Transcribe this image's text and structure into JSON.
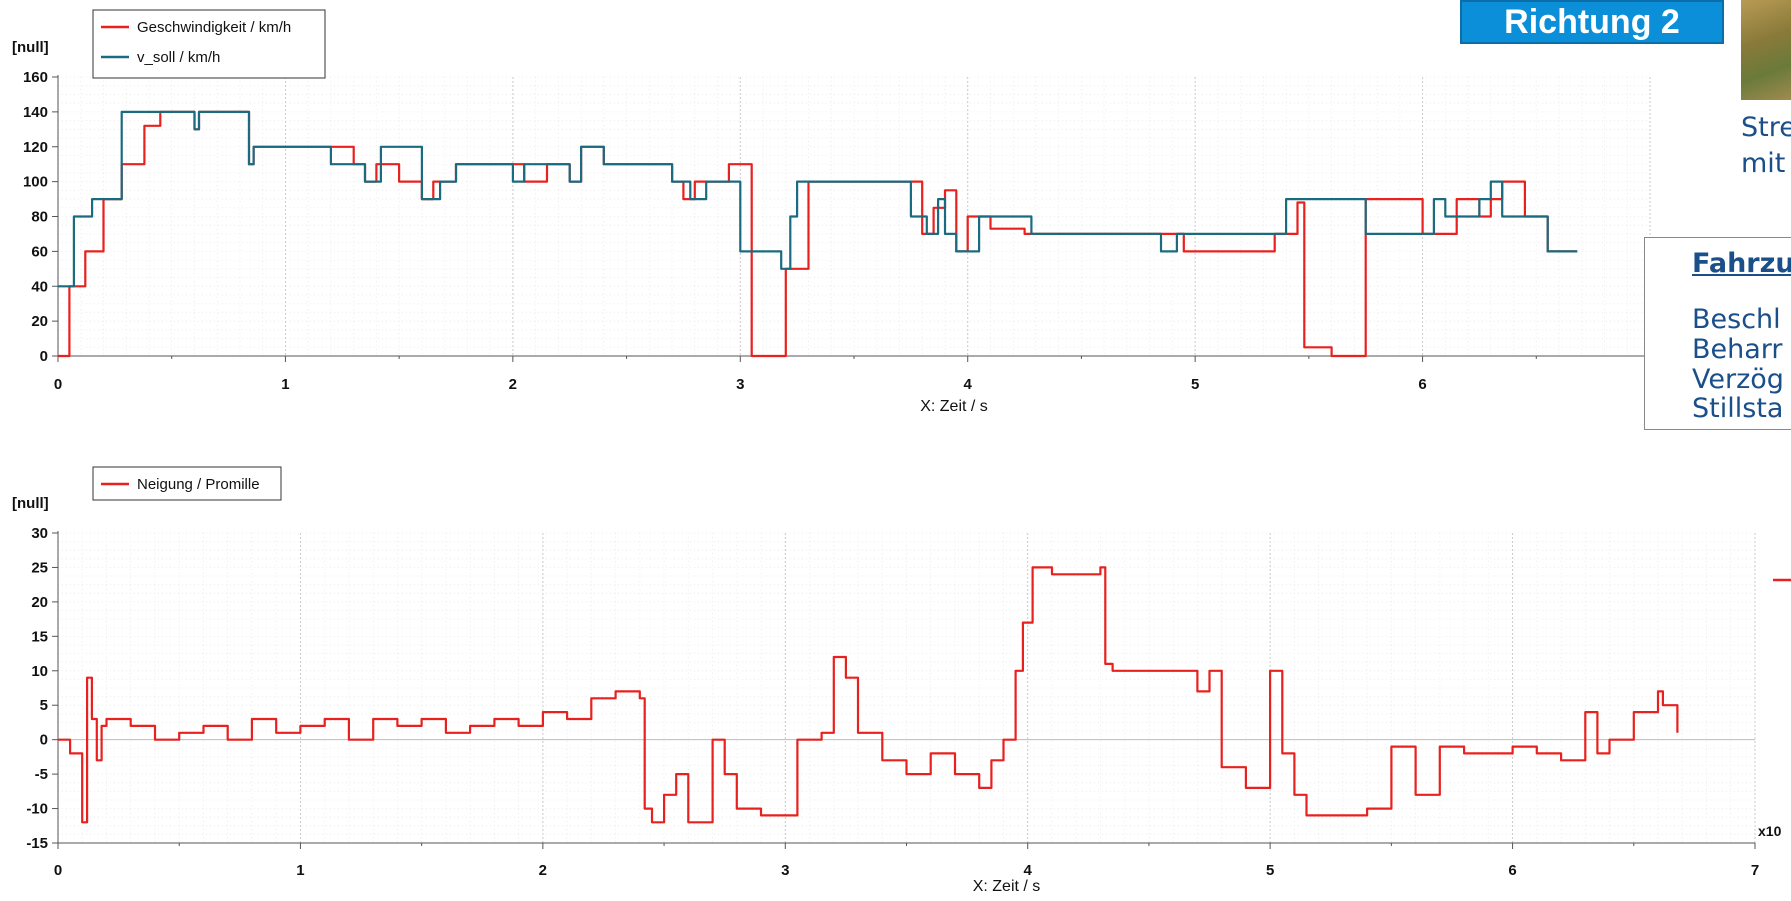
{
  "top_button": {
    "label": "Richtung 2"
  },
  "side_caption": {
    "line1": "Stre",
    "line2": "mit"
  },
  "info_box": {
    "title": "Fahrzu",
    "lines": [
      "Beschl",
      "Beharr",
      "Verzög",
      "Stillsta"
    ]
  },
  "colors": {
    "red": "#e8201e",
    "teal": "#1a6b80",
    "accent_blue": "#0a8fd8",
    "text_blue": "#1a4f8a"
  },
  "x_multiplier_label": "x10",
  "chart_data": [
    {
      "type": "line",
      "unit_label": "[null]",
      "xlabel": "X: Zeit / s",
      "xlim": [
        0,
        7
      ],
      "ylim": [
        0,
        160
      ],
      "xticks": [
        "0",
        "1",
        "2",
        "3",
        "4",
        "5",
        "6"
      ],
      "yticks": [
        "0",
        "20",
        "40",
        "60",
        "80",
        "100",
        "120",
        "140",
        "160"
      ],
      "grid": true,
      "legend": "top-left",
      "series": [
        {
          "name": "Geschwindigkeit / km/h",
          "color": "#e8201e",
          "x": [
            0,
            0.05,
            0.12,
            0.2,
            0.28,
            0.38,
            0.45,
            0.58,
            0.6,
            0.62,
            0.8,
            0.84,
            0.86,
            1.2,
            1.3,
            1.35,
            1.4,
            1.5,
            1.6,
            1.65,
            1.75,
            2.0,
            2.05,
            2.15,
            2.25,
            2.3,
            2.4,
            2.7,
            2.75,
            2.8,
            2.95,
            3.0,
            3.05,
            3.1,
            3.15,
            3.2,
            3.3,
            3.5,
            3.75,
            3.8,
            3.85,
            3.9,
            3.95,
            4.0,
            4.1,
            4.25,
            4.5,
            4.85,
            4.95,
            5.35,
            5.4,
            5.45,
            5.48,
            5.6,
            5.75,
            6.0,
            6.05,
            6.15,
            6.25,
            6.3,
            6.35,
            6.45,
            6.55,
            6.58,
            6.68
          ],
          "y": [
            0,
            40,
            60,
            90,
            110,
            132,
            140,
            140,
            130,
            140,
            140,
            110,
            120,
            120,
            110,
            100,
            110,
            100,
            90,
            100,
            110,
            110,
            100,
            110,
            100,
            120,
            110,
            100,
            90,
            100,
            110,
            110,
            0,
            0,
            0,
            50,
            100,
            100,
            100,
            70,
            85,
            95,
            60,
            80,
            73,
            70,
            70,
            70,
            60,
            70,
            70,
            88,
            5,
            0,
            90,
            70,
            70,
            90,
            80,
            90,
            100,
            80,
            60,
            60,
            60
          ]
        },
        {
          "name": "v_soll / km/h",
          "color": "#1a6b80",
          "x": [
            0,
            0.07,
            0.15,
            0.28,
            0.6,
            0.62,
            0.84,
            0.86,
            1.2,
            1.35,
            1.42,
            1.6,
            1.68,
            1.75,
            2.0,
            2.05,
            2.25,
            2.3,
            2.4,
            2.7,
            2.78,
            2.85,
            3.0,
            3.18,
            3.22,
            3.25,
            3.75,
            3.82,
            3.87,
            3.9,
            3.95,
            4.05,
            4.28,
            4.85,
            4.92,
            5.4,
            5.45,
            5.75,
            6.05,
            6.1,
            6.25,
            6.3,
            6.35,
            6.45,
            6.55,
            6.68
          ],
          "y": [
            40,
            80,
            90,
            140,
            130,
            140,
            110,
            120,
            110,
            100,
            120,
            90,
            100,
            110,
            100,
            110,
            100,
            120,
            110,
            100,
            90,
            100,
            60,
            50,
            80,
            100,
            80,
            70,
            90,
            70,
            60,
            80,
            70,
            60,
            70,
            90,
            90,
            70,
            90,
            80,
            90,
            100,
            80,
            80,
            60,
            60
          ]
        }
      ]
    },
    {
      "type": "line",
      "unit_label": "[null]",
      "xlabel": "X: Zeit / s",
      "xlim": [
        0,
        7
      ],
      "ylim": [
        -15,
        30
      ],
      "xticks": [
        "0",
        "1",
        "2",
        "3",
        "4",
        "5",
        "6",
        "7"
      ],
      "yticks": [
        "-15",
        "-10",
        "-5",
        "0",
        "5",
        "10",
        "15",
        "20",
        "25",
        "30"
      ],
      "grid": true,
      "legend": "top-left",
      "series": [
        {
          "name": "Neigung / Promille",
          "color": "#e8201e",
          "x": [
            0,
            0.05,
            0.1,
            0.12,
            0.14,
            0.16,
            0.18,
            0.2,
            0.3,
            0.4,
            0.5,
            0.6,
            0.7,
            0.8,
            0.9,
            1.0,
            1.1,
            1.2,
            1.3,
            1.4,
            1.5,
            1.6,
            1.7,
            1.8,
            1.9,
            2.0,
            2.1,
            2.2,
            2.3,
            2.4,
            2.42,
            2.45,
            2.5,
            2.55,
            2.6,
            2.7,
            2.75,
            2.8,
            2.9,
            3.0,
            3.05,
            3.15,
            3.2,
            3.25,
            3.3,
            3.4,
            3.5,
            3.6,
            3.7,
            3.8,
            3.85,
            3.9,
            3.95,
            3.98,
            4.02,
            4.1,
            4.3,
            4.32,
            4.35,
            4.5,
            4.6,
            4.7,
            4.75,
            4.8,
            4.9,
            5.0,
            5.05,
            5.1,
            5.15,
            5.2,
            5.4,
            5.5,
            5.6,
            5.7,
            5.8,
            5.9,
            6.0,
            6.1,
            6.2,
            6.3,
            6.35,
            6.4,
            6.5,
            6.6,
            6.62,
            6.68
          ],
          "y": [
            0,
            -2,
            -12,
            9,
            3,
            -3,
            2,
            3,
            2,
            0,
            1,
            2,
            0,
            3,
            1,
            2,
            3,
            0,
            3,
            2,
            3,
            1,
            2,
            3,
            2,
            4,
            3,
            6,
            7,
            6,
            -10,
            -12,
            -8,
            -5,
            -12,
            0,
            -5,
            -10,
            -11,
            -11,
            0,
            1,
            12,
            9,
            1,
            -3,
            -5,
            -2,
            -5,
            -7,
            -3,
            0,
            10,
            17,
            25,
            24,
            25,
            11,
            10,
            10,
            10,
            7,
            10,
            -4,
            -7,
            10,
            -2,
            -8,
            -11,
            -11,
            -10,
            -1,
            -8,
            -1,
            -2,
            -2,
            -1,
            -2,
            -3,
            4,
            -2,
            0,
            4,
            7,
            5,
            1
          ]
        }
      ]
    }
  ]
}
